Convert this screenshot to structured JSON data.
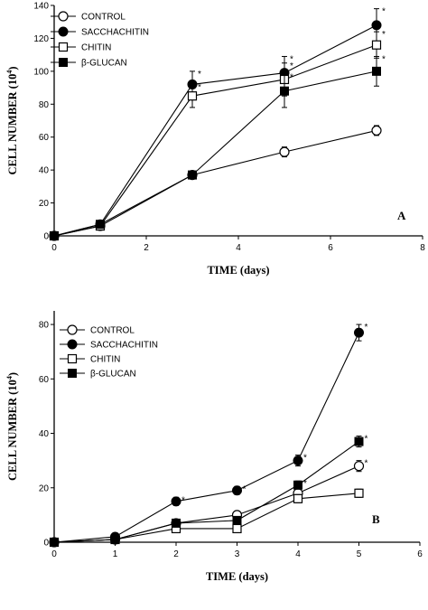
{
  "chart_data": [
    {
      "type": "line",
      "panel_label": "A",
      "xlabel": "TIME (days)",
      "ylabel": "CELL NUMBER (10",
      "ylabel_sup": "4",
      "ylabel_close": ")",
      "xlim": [
        0,
        8
      ],
      "ylim": [
        0,
        140
      ],
      "xticks": [
        0,
        2,
        4,
        6,
        8
      ],
      "yticks": [
        0,
        20,
        40,
        60,
        80,
        100,
        120,
        140
      ],
      "grid": false,
      "legend_position": "top-left",
      "series": [
        {
          "name": "CONTROL",
          "marker": "open-circle",
          "x": [
            0,
            1,
            3,
            5,
            7
          ],
          "y": [
            0,
            6,
            37,
            51,
            64
          ],
          "err": [
            0,
            1,
            2,
            3,
            3
          ],
          "star": [
            false,
            false,
            false,
            false,
            false
          ]
        },
        {
          "name": "SACCHACHITIN",
          "marker": "filled-circle",
          "x": [
            0,
            1,
            3,
            5,
            7
          ],
          "y": [
            0,
            7,
            92,
            99,
            128
          ],
          "err": [
            0,
            1,
            8,
            10,
            10
          ],
          "star": [
            false,
            false,
            true,
            true,
            true
          ]
        },
        {
          "name": "CHITIN",
          "marker": "open-square",
          "x": [
            0,
            1,
            3,
            5,
            7
          ],
          "y": [
            0,
            6,
            85,
            95,
            116
          ],
          "err": [
            0,
            1,
            7,
            10,
            8
          ],
          "star": [
            false,
            false,
            true,
            true,
            true
          ]
        },
        {
          "name": "β-GLUCAN",
          "marker": "filled-square",
          "x": [
            0,
            1,
            3,
            5,
            7
          ],
          "y": [
            0,
            7,
            37,
            88,
            100
          ],
          "err": [
            0,
            1,
            2,
            10,
            9
          ],
          "star": [
            false,
            false,
            false,
            true,
            true
          ]
        }
      ]
    },
    {
      "type": "line",
      "panel_label": "B",
      "xlabel": "TIME (days)",
      "ylabel": "CELL NUMBER (10",
      "ylabel_sup": "4",
      "ylabel_close": ")",
      "xlim": [
        0,
        6
      ],
      "ylim": [
        0,
        85
      ],
      "xticks": [
        0,
        1,
        2,
        3,
        4,
        5,
        6
      ],
      "yticks": [
        0,
        20,
        40,
        60,
        80
      ],
      "grid": false,
      "legend_position": "top-left",
      "series": [
        {
          "name": "CONTROL",
          "marker": "open-circle",
          "x": [
            0,
            1,
            2,
            3,
            4,
            5
          ],
          "y": [
            0,
            1,
            7,
            10,
            18,
            28
          ],
          "err": [
            0,
            0.5,
            1,
            1,
            1.5,
            2
          ],
          "star": [
            false,
            false,
            false,
            false,
            false,
            true
          ]
        },
        {
          "name": "SACCHACHITIN",
          "marker": "filled-circle",
          "x": [
            0,
            1,
            2,
            3,
            4,
            5
          ],
          "y": [
            0,
            2,
            15,
            19,
            30,
            77
          ],
          "err": [
            0,
            0.5,
            1.5,
            1.5,
            2,
            3
          ],
          "star": [
            false,
            false,
            true,
            true,
            true,
            true
          ]
        },
        {
          "name": "CHITIN",
          "marker": "open-square",
          "x": [
            0,
            1,
            2,
            3,
            4,
            5
          ],
          "y": [
            0,
            1,
            5,
            5,
            16,
            18
          ],
          "err": [
            0,
            0.5,
            1,
            1,
            1.5,
            1.5
          ],
          "star": [
            false,
            false,
            false,
            false,
            false,
            false
          ]
        },
        {
          "name": "β-GLUCAN",
          "marker": "filled-square",
          "x": [
            0,
            1,
            2,
            3,
            4,
            5
          ],
          "y": [
            0,
            1,
            7,
            8,
            21,
            37
          ],
          "err": [
            0,
            0.5,
            1,
            1,
            1.5,
            2
          ],
          "star": [
            false,
            false,
            false,
            false,
            true,
            true
          ]
        }
      ]
    }
  ]
}
